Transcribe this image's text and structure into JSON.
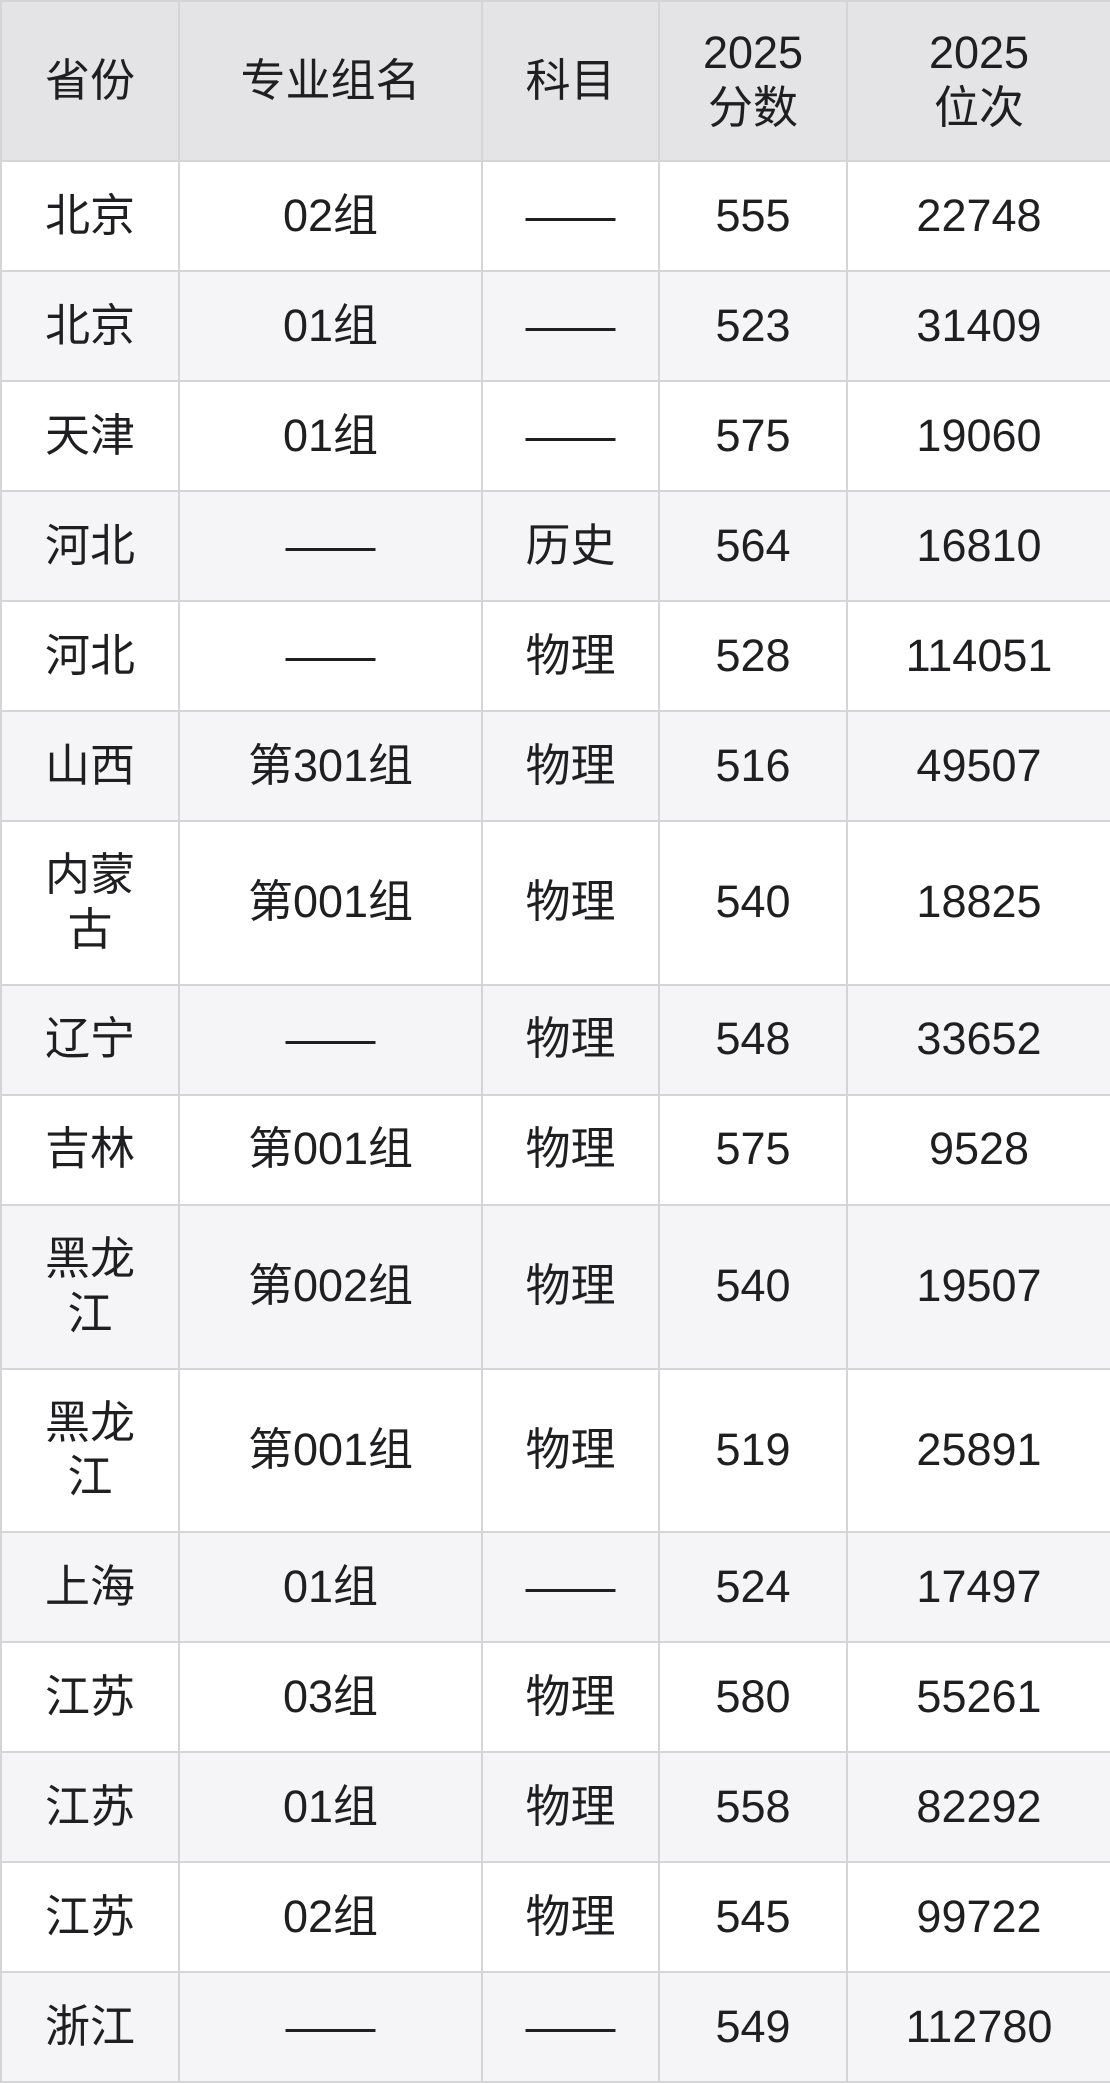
{
  "colors": {
    "header_bg": "#e4e4e6",
    "row_bg": "#ffffff",
    "row_alt_bg": "#f5f5f7",
    "border": "#d5d5d7",
    "text": "#1f1f21"
  },
  "chart_data": {
    "type": "table",
    "columns": [
      "省份",
      "专业组名",
      "科目",
      "2025\n分数",
      "2025\n位次"
    ],
    "rows": [
      [
        "北京",
        "02组",
        "——",
        "555",
        "22748"
      ],
      [
        "北京",
        "01组",
        "——",
        "523",
        "31409"
      ],
      [
        "天津",
        "01组",
        "——",
        "575",
        "19060"
      ],
      [
        "河北",
        "——",
        "历史",
        "564",
        "16810"
      ],
      [
        "河北",
        "——",
        "物理",
        "528",
        "114051"
      ],
      [
        "山西",
        "第301组",
        "物理",
        "516",
        "49507"
      ],
      [
        "内蒙古",
        "第001组",
        "物理",
        "540",
        "18825"
      ],
      [
        "辽宁",
        "——",
        "物理",
        "548",
        "33652"
      ],
      [
        "吉林",
        "第001组",
        "物理",
        "575",
        "9528"
      ],
      [
        "黑龙江",
        "第002组",
        "物理",
        "540",
        "19507"
      ],
      [
        "黑龙江",
        "第001组",
        "物理",
        "519",
        "25891"
      ],
      [
        "上海",
        "01组",
        "——",
        "524",
        "17497"
      ],
      [
        "江苏",
        "03组",
        "物理",
        "580",
        "55261"
      ],
      [
        "江苏",
        "01组",
        "物理",
        "558",
        "82292"
      ],
      [
        "江苏",
        "02组",
        "物理",
        "545",
        "99722"
      ],
      [
        "浙江",
        "——",
        "——",
        "549",
        "112780"
      ]
    ]
  }
}
